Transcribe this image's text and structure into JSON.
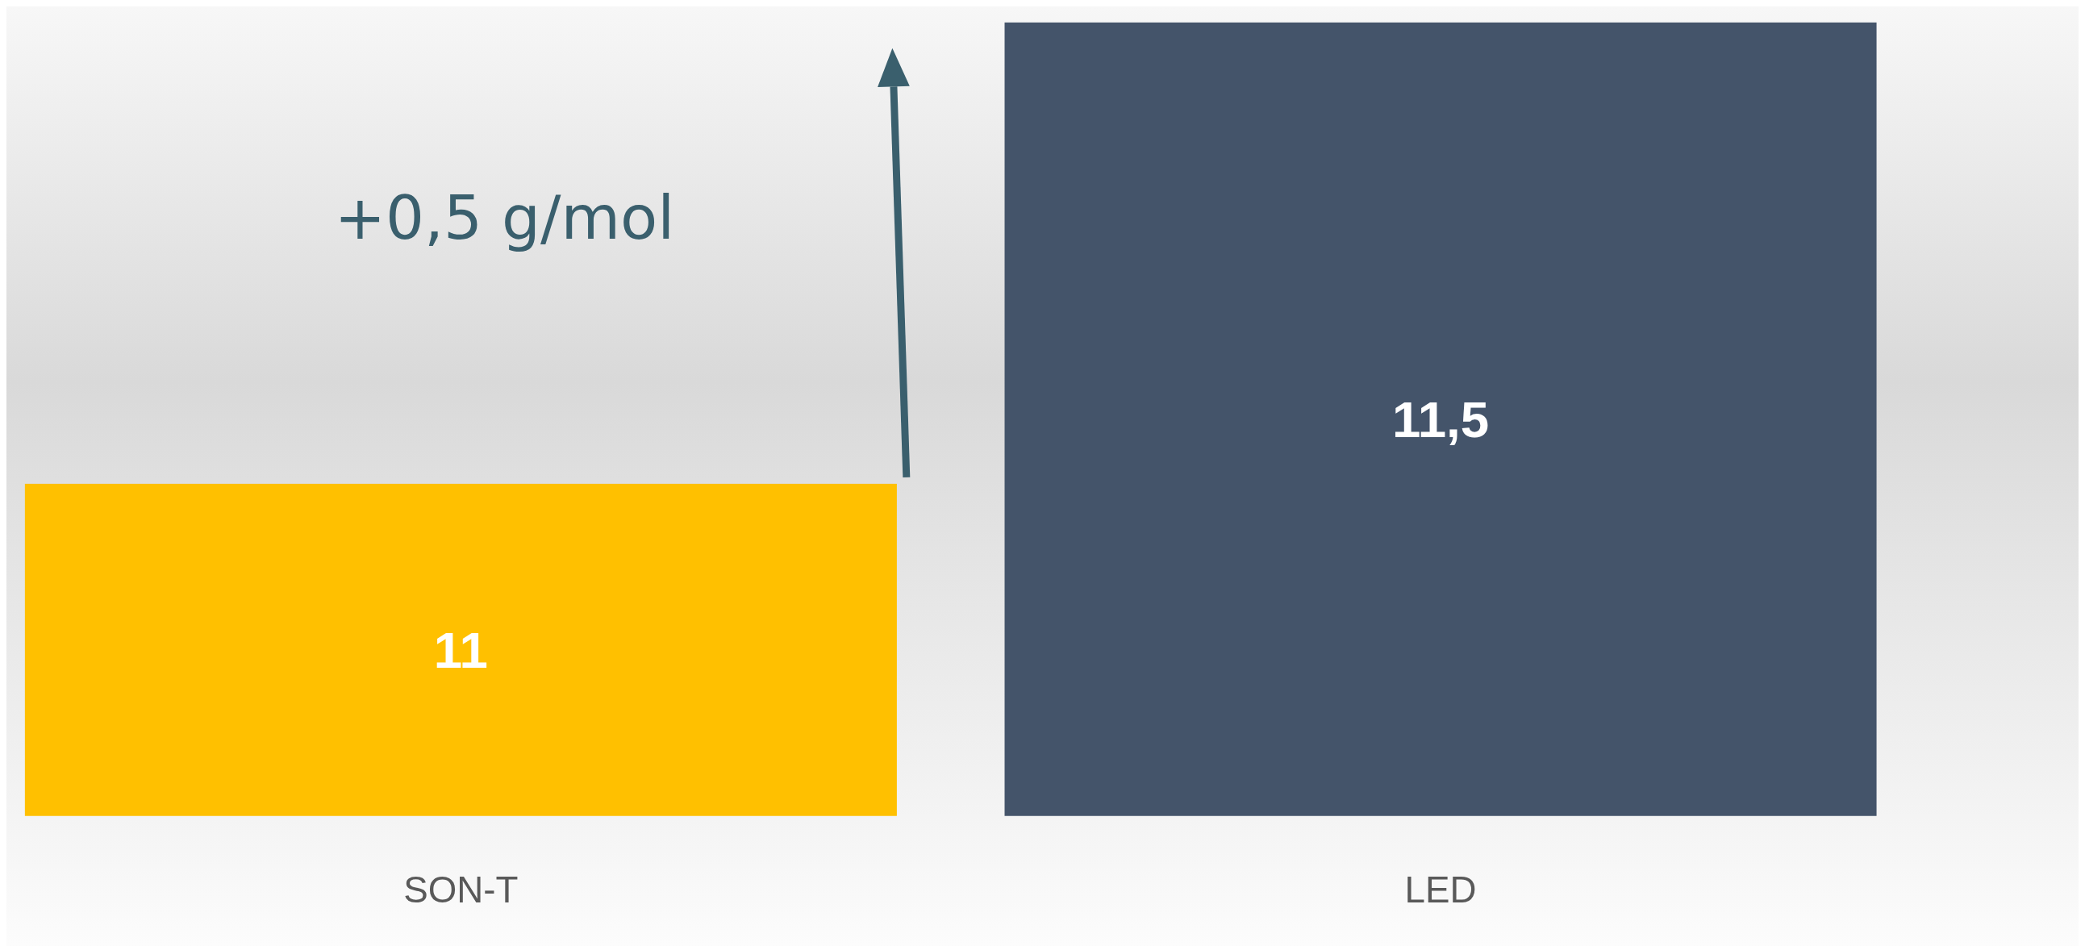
{
  "chart_data": {
    "type": "bar",
    "categories": [
      "SON-T",
      "LED"
    ],
    "values": [
      11,
      11.5
    ],
    "colors": [
      "#ffc000",
      "#44546a"
    ],
    "value_labels": [
      "11",
      "11,5"
    ],
    "ylim": [
      10.64,
      11.5
    ],
    "tick_labels": "x",
    "annotations": [
      "+0,5 g/mol"
    ]
  }
}
